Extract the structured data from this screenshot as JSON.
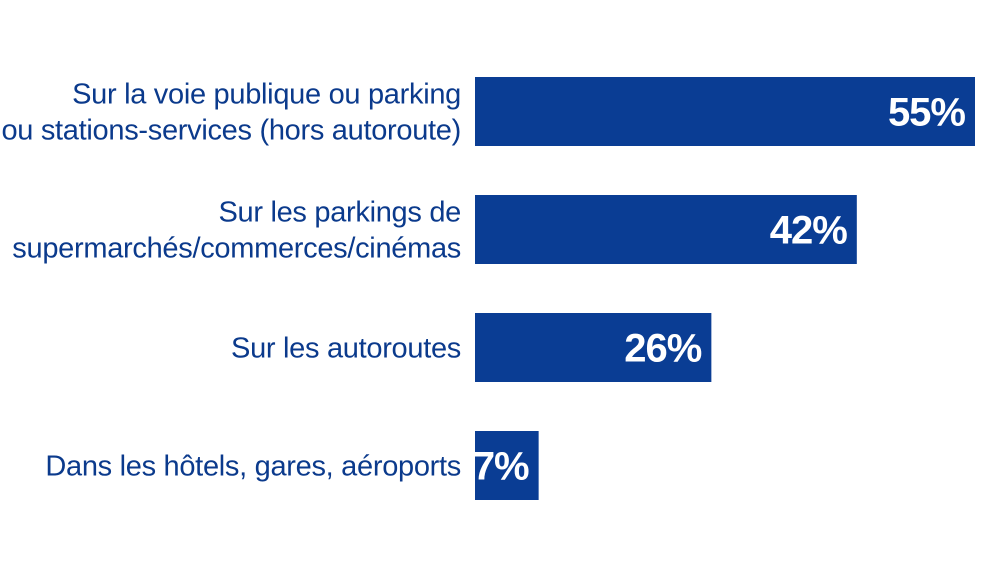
{
  "chart_data": {
    "type": "bar",
    "orientation": "horizontal",
    "categories": [
      [
        "Sur la voie publique ou parking",
        "ou stations-services (hors autoroute)"
      ],
      [
        "Sur les parkings de",
        "supermarchés/commerces/cinémas"
      ],
      [
        "Sur les autoroutes"
      ],
      [
        "Dans les hôtels, gares, aéroports"
      ]
    ],
    "values": [
      55,
      42,
      26,
      7
    ],
    "value_labels": [
      "55%",
      "42%",
      "26%",
      "7%"
    ],
    "title": "",
    "xlabel": "",
    "ylabel": "",
    "xlim": [
      0,
      55
    ],
    "grid": false,
    "legend": "none",
    "bar_color": "#0a3d94",
    "label_color": "#0b3a8c",
    "value_label_color": "#ffffff"
  }
}
